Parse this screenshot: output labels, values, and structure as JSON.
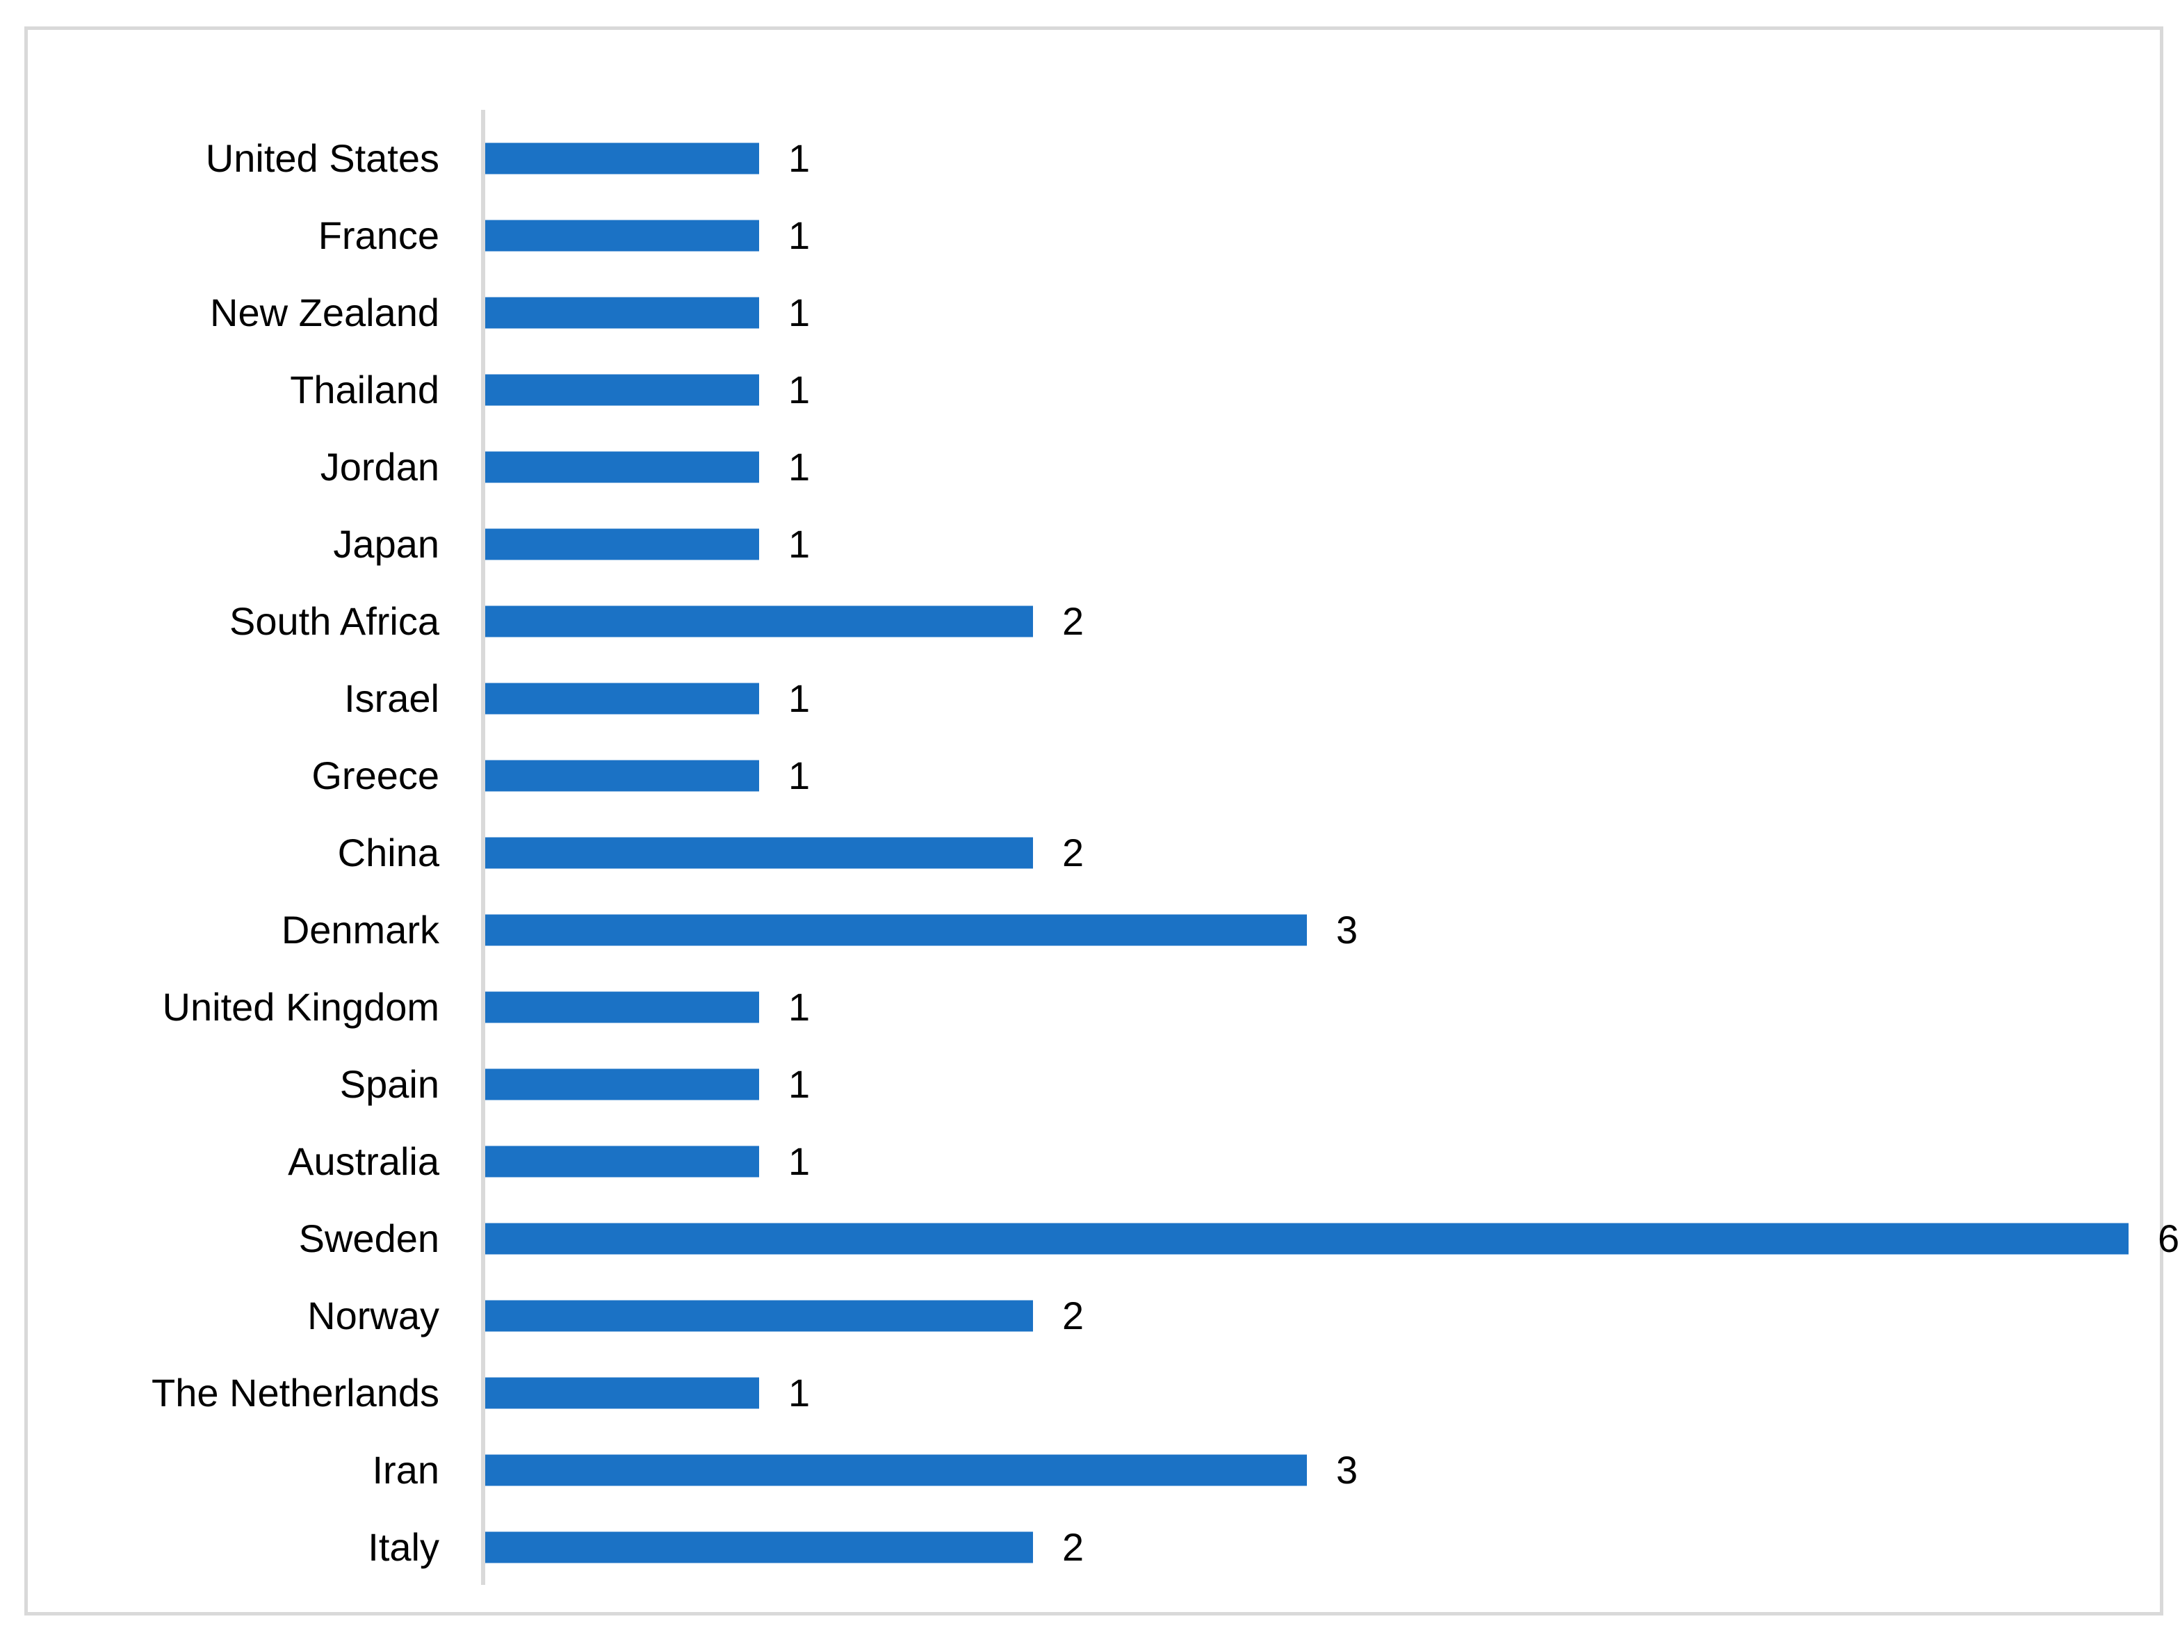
{
  "chart_data": {
    "type": "bar",
    "orientation": "horizontal",
    "title": "",
    "xlabel": "",
    "ylabel": "",
    "categories": [
      "United States",
      "France",
      "New Zealand",
      "Thailand",
      "Jordan",
      "Japan",
      "South Africa",
      "Israel",
      "Greece",
      "China",
      "Denmark",
      "United Kingdom",
      "Spain",
      "Australia",
      "Sweden",
      "Norway",
      "The Netherlands",
      "Iran",
      "Italy"
    ],
    "values": [
      1,
      1,
      1,
      1,
      1,
      1,
      2,
      1,
      1,
      2,
      3,
      1,
      1,
      1,
      6,
      2,
      1,
      3,
      2
    ],
    "data_labels": [
      1,
      1,
      1,
      1,
      1,
      1,
      2,
      1,
      1,
      2,
      3,
      1,
      1,
      1,
      6,
      2,
      1,
      3,
      2
    ],
    "xlim": [
      0,
      6.2
    ],
    "grid": false,
    "legend": "none",
    "colors": {
      "bar": "#1b72c5",
      "axis_line": "#d9d9d9",
      "frame_border": "#d9d9d9",
      "text": "#000000",
      "background": "#ffffff"
    }
  }
}
